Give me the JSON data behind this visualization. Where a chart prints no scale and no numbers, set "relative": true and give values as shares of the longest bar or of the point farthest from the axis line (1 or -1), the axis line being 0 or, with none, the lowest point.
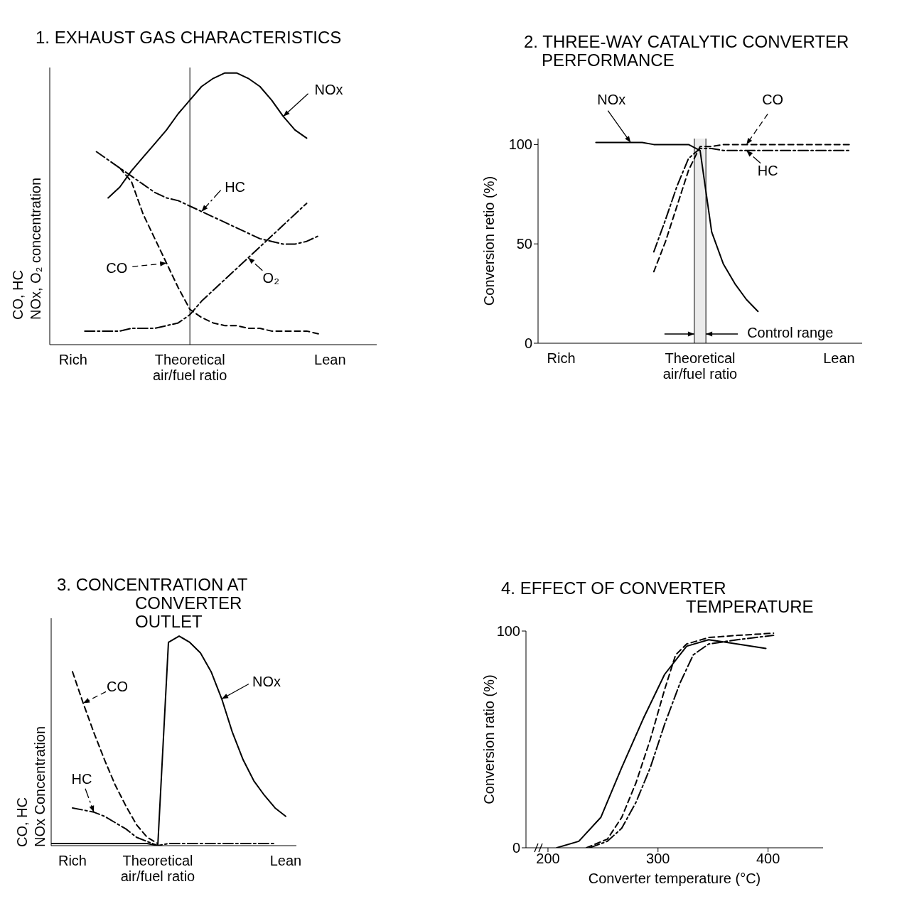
{
  "chart_data": [
    {
      "type": "line",
      "title": "1. EXHAUST GAS CHARACTERISTICS",
      "ylabel": "CO, HC\nNOx, O₂ concentration",
      "relative": true,
      "categories": [
        null,
        null,
        "Rich",
        null,
        null,
        null,
        null,
        null,
        null,
        null,
        null,
        null,
        "Theoretical air/fuel ratio",
        null,
        null,
        null,
        null,
        null,
        null,
        null,
        null,
        null,
        null,
        null,
        "Lean",
        null,
        null,
        null,
        null
      ],
      "ref_lines": [
        {
          "axis": "x",
          "value": "Theoretical air/fuel ratio"
        }
      ],
      "series": [
        {
          "name": "NOx",
          "color": "#000000",
          "line_style": "solid",
          "values": [
            null,
            null,
            null,
            null,
            null,
            0.54,
            0.58,
            0.64,
            0.69,
            0.74,
            0.79,
            0.85,
            0.9,
            0.95,
            0.98,
            1.0,
            1.0,
            0.98,
            0.95,
            0.9,
            0.84,
            0.79,
            0.76,
            null,
            null,
            null,
            null,
            null,
            null
          ]
        },
        {
          "name": "HC",
          "color": "#000000",
          "line_style": "dashdot",
          "values": [
            null,
            null,
            null,
            null,
            0.71,
            0.68,
            0.65,
            0.62,
            0.59,
            0.56,
            0.54,
            0.53,
            0.51,
            0.49,
            0.47,
            0.45,
            0.43,
            0.41,
            0.39,
            0.38,
            0.37,
            0.37,
            0.38,
            0.4,
            null,
            null,
            null,
            null,
            null
          ]
        },
        {
          "name": "CO",
          "color": "#000000",
          "line_style": "dashed",
          "values": [
            null,
            null,
            null,
            null,
            null,
            null,
            0.65,
            0.6,
            0.48,
            0.39,
            0.3,
            0.21,
            0.13,
            0.1,
            0.08,
            0.07,
            0.07,
            0.06,
            0.06,
            0.05,
            0.05,
            0.05,
            0.05,
            0.04,
            null,
            null,
            null,
            null,
            null
          ]
        },
        {
          "name": "O₂",
          "color": "#000000",
          "line_style": "dashdot",
          "values": [
            null,
            null,
            null,
            0.05,
            0.05,
            0.05,
            0.05,
            0.06,
            0.06,
            0.06,
            0.07,
            0.08,
            0.11,
            0.16,
            0.2,
            0.24,
            0.28,
            0.32,
            0.36,
            0.4,
            0.44,
            0.48,
            0.52,
            null,
            null,
            null,
            null,
            null,
            null
          ]
        }
      ]
    },
    {
      "type": "line",
      "title": "2. THREE-WAY CATALYTIC CONVERTER PERFORMANCE",
      "ylabel": "Conversion retio (%)",
      "ylim": [
        0,
        103
      ],
      "yticks": [
        0,
        50,
        100
      ],
      "categories": [
        null,
        null,
        "Rich",
        null,
        null,
        null,
        null,
        null,
        null,
        null,
        null,
        null,
        null,
        null,
        "Theoretical air/fuel ratio",
        null,
        null,
        null,
        null,
        null,
        null,
        null,
        null,
        null,
        null,
        null,
        "Lean",
        null,
        null
      ],
      "bands": [
        {
          "axis": "x",
          "from": "Theoretical air/fuel ratio",
          "to": "Theoretical air/fuel ratio",
          "label": "Control range"
        }
      ],
      "series": [
        {
          "name": "NOx",
          "color": "#000000",
          "line_style": "solid",
          "values": [
            null,
            null,
            null,
            null,
            null,
            101,
            101,
            101,
            101,
            101,
            100,
            100,
            100,
            100,
            97,
            56,
            40,
            30,
            22,
            16,
            null,
            null,
            null,
            null,
            null,
            null,
            null,
            null,
            null
          ]
        },
        {
          "name": "CO",
          "color": "#000000",
          "line_style": "dashed",
          "values": [
            null,
            null,
            null,
            null,
            null,
            null,
            null,
            null,
            null,
            null,
            36,
            51,
            69,
            87,
            99,
            99,
            100,
            100,
            100,
            100,
            100,
            100,
            100,
            100,
            100,
            100,
            100,
            100,
            null
          ]
        },
        {
          "name": "HC",
          "color": "#000000",
          "line_style": "dashdot",
          "values": [
            null,
            null,
            null,
            null,
            null,
            null,
            null,
            null,
            null,
            null,
            46,
            62,
            79,
            93,
            98,
            98,
            97,
            97,
            97,
            97,
            97,
            97,
            97,
            97,
            97,
            97,
            97,
            97,
            null
          ]
        }
      ]
    },
    {
      "type": "line",
      "title": "3. CONCENTRATION AT CONVERTER OUTLET",
      "ylabel": "CO, HC\nNOx Concentration",
      "relative": true,
      "categories": [
        null,
        null,
        "Rich",
        null,
        null,
        null,
        null,
        null,
        null,
        null,
        "Theoretical air/fuel ratio",
        null,
        null,
        null,
        null,
        null,
        null,
        null,
        null,
        null,
        null,
        null,
        "Lean",
        null
      ],
      "series": [
        {
          "name": "CO",
          "color": "#000000",
          "line_style": "dashed",
          "values": [
            null,
            null,
            0.83,
            0.68,
            0.54,
            0.41,
            0.29,
            0.19,
            0.1,
            0.04,
            0.01,
            null,
            null,
            null,
            null,
            null,
            null,
            null,
            null,
            null,
            null,
            null,
            null,
            null
          ]
        },
        {
          "name": "HC",
          "color": "#000000",
          "line_style": "dashdot",
          "values": [
            null,
            null,
            0.18,
            0.17,
            0.16,
            0.14,
            0.11,
            0.08,
            0.04,
            0.02,
            0,
            0.01,
            0.01,
            0.01,
            0.01,
            0.01,
            0.01,
            0.01,
            0.01,
            0.01,
            0.01,
            0.01,
            null,
            null
          ]
        },
        {
          "name": "NOx",
          "color": "#000000",
          "line_style": "solid",
          "values": [
            0.01,
            0.01,
            0.01,
            0.01,
            0.01,
            0.01,
            0.01,
            0.01,
            0.01,
            0.01,
            0,
            0.97,
            1.0,
            0.97,
            0.92,
            0.83,
            0.7,
            0.54,
            0.41,
            0.31,
            0.24,
            0.18,
            0.14,
            null
          ]
        }
      ]
    },
    {
      "type": "line",
      "title": "4. EFFECT OF CONVERTER TEMPERATURE",
      "xlabel": "Converter temperature (°C)",
      "ylabel": "Conversion ratio (%)",
      "xlim": [
        180,
        450
      ],
      "xticks": [
        200,
        300,
        400
      ],
      "ylim": [
        0,
        100
      ],
      "yticks": [
        0,
        100
      ],
      "series": [
        {
          "color": "#000000",
          "line_style": "solid",
          "x": [
            208,
            228,
            248,
            267,
            287,
            306,
            326,
            346,
            372,
            398
          ],
          "values": [
            0,
            3,
            14,
            37,
            60,
            80,
            93,
            96,
            94,
            92
          ]
        },
        {
          "color": "#000000",
          "line_style": "dashed",
          "x": [
            235,
            254,
            267,
            280,
            293,
            306,
            316,
            326,
            346,
            372,
            405
          ],
          "values": [
            0,
            4,
            14,
            30,
            50,
            73,
            89,
            94,
            97,
            98,
            99
          ]
        },
        {
          "color": "#000000",
          "line_style": "dashdot",
          "x": [
            238,
            254,
            267,
            280,
            293,
            306,
            320,
            332,
            346,
            372,
            405
          ],
          "values": [
            0,
            3,
            9,
            21,
            37,
            57,
            76,
            89,
            94,
            96,
            98
          ]
        }
      ]
    }
  ]
}
